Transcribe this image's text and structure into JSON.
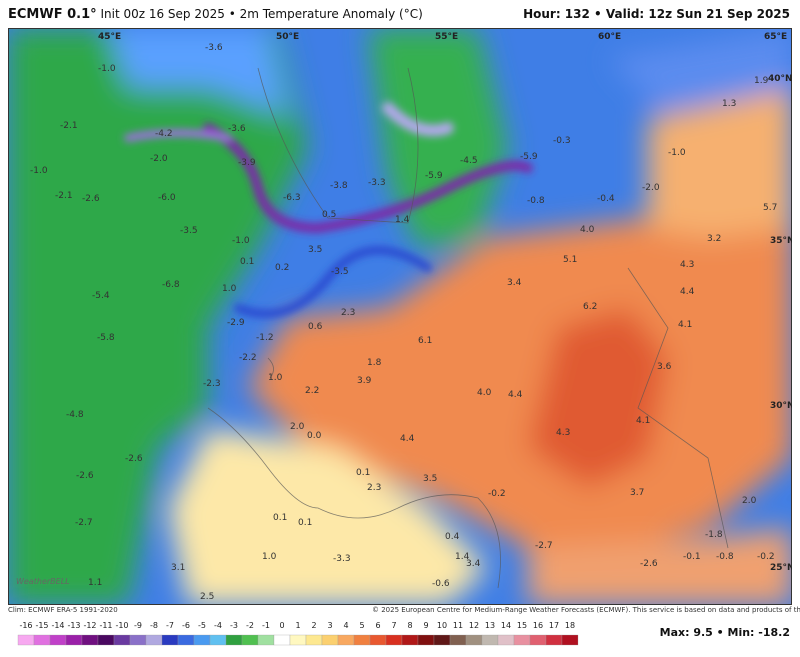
{
  "header": {
    "model": "ECMWF 0.1°",
    "info": "Init 00z 16 Sep 2025 • 2m Temperature Anomaly (°C)",
    "valid": "Hour: 132 • Valid: 12z Sun 21 Sep 2025"
  },
  "map": {
    "grid_labels": [
      "45°E",
      "50°E",
      "55°E",
      "60°E",
      "65°E",
      "40°N",
      "35°N",
      "30°N",
      "25°N"
    ],
    "logo": "WeatherBELL",
    "labels": [
      "-3.6",
      "-1.0",
      "-2.1",
      "-4.2",
      "-3.6",
      "-2.0",
      "-3.9",
      "-1.0",
      "-2.1",
      "-2.6",
      "-6.0",
      "-6.3",
      "-3.8",
      "-3.3",
      "-5.9",
      "-4.5",
      "-5.9",
      "-0.3",
      "-1.0",
      "-2.0",
      "-0.4",
      "-0.8",
      "0.5",
      "1.4",
      "4.0",
      "5.7",
      "3.2",
      "-3.5",
      "-1.0",
      "3.5",
      "0.1",
      "0.2",
      "-3.5",
      "4.3",
      "5.1",
      "3.4",
      "4.4",
      "6.2",
      "-6.8",
      "-5.4",
      "1.0",
      "2.3",
      "4.1",
      "-2.9",
      "0.6",
      "6.1",
      "-1.2",
      "-5.8",
      "1.8",
      "-2.2",
      "3.6",
      "1.0",
      "3.9",
      "-2.3",
      "2.2",
      "4.0",
      "4.4",
      "-4.8",
      "2.0",
      "0.0",
      "4.1",
      "4.4",
      "4.3",
      "-2.6",
      "0.1",
      "3.5",
      "2.3",
      "-0.2",
      "3.7",
      "2.0",
      "-2.6",
      "-2.7",
      "0.1",
      "0.1",
      "0.4",
      "-1.8",
      "1.0",
      "-3.3",
      "1.4",
      "-0.1",
      "-0.8",
      "-0.2",
      "-2.6",
      "3.1",
      "1.1",
      "2.5",
      "-0.6",
      "3.4",
      "-2.7",
      "1.9",
      "1.3"
    ]
  },
  "footer": {
    "clim": "Clim: ECMWF ERA-5 1991-2020",
    "credit": "© 2025 European Centre for Medium-Range Weather Forecasts (ECMWF). This service is based on data and products of the ECMWF.",
    "maxmin": "Max: 9.5 • Min: -18.2"
  },
  "colorbar": {
    "ticks": [
      -16,
      -15,
      -14,
      -13,
      -12,
      -11,
      -10,
      -9,
      -8,
      -7,
      -6,
      -5,
      -4,
      -3,
      -2,
      -1,
      0,
      1,
      2,
      3,
      4,
      5,
      6,
      7,
      8,
      9,
      10,
      11,
      12,
      13,
      14,
      15,
      16,
      17,
      18
    ],
    "colors": [
      "#f7a8f0",
      "#e070e0",
      "#c040c8",
      "#9a20a8",
      "#701080",
      "#4a0860",
      "#6a3aa0",
      "#8a70c8",
      "#b0a8e0",
      "#2a3ac0",
      "#3a6ae0",
      "#4a9af0",
      "#60c0f0",
      "#30a040",
      "#50c050",
      "#a0e0a0",
      "#ffffff",
      "#fff8c0",
      "#fde890",
      "#fbd070",
      "#f8a860",
      "#f08040",
      "#e85830",
      "#d83020",
      "#b01818",
      "#801010",
      "#601818",
      "#806050",
      "#a09080",
      "#c0b8b0",
      "#e0c0c8",
      "#e890a0",
      "#e06070",
      "#d03040",
      "#b01020"
    ]
  }
}
